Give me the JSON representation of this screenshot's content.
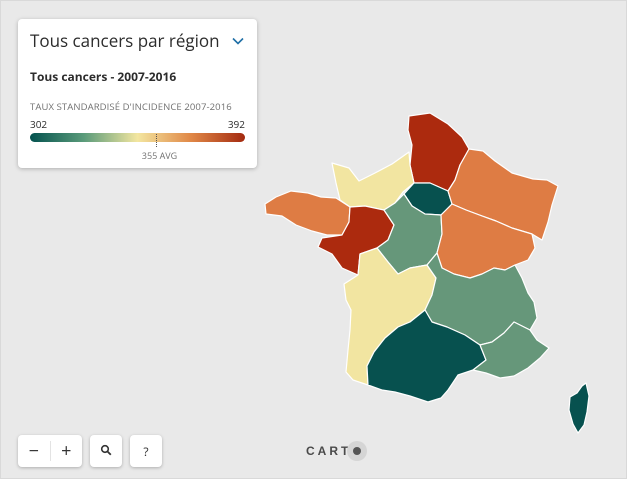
{
  "legend": {
    "title": "Tous cancers par région",
    "layer_title": "Tous cancers - 2007-2016",
    "subtitle": "TAUX STANDARDISÉ D'INCIDENCE 2007-2016",
    "min": "302",
    "max": "392",
    "avg": "355 AVG"
  },
  "colors": {
    "ramp": [
      "#04524f",
      "#5a9b7a",
      "#f3e6a0",
      "#e08746",
      "#a32a10"
    ],
    "background": "#e9e9e9"
  },
  "regions": [
    {
      "id": "hauts-de-france",
      "class": "darkred",
      "color": "#ac2a0e"
    },
    {
      "id": "normandie",
      "class": "yellow",
      "color": "#f2e5a1"
    },
    {
      "id": "ile-de-france",
      "class": "teal",
      "color": "#07514f"
    },
    {
      "id": "grand-est",
      "class": "orange",
      "color": "#de7c44"
    },
    {
      "id": "bretagne",
      "class": "orange",
      "color": "#de7c44"
    },
    {
      "id": "pays-de-la-loire",
      "class": "darkred",
      "color": "#ac2a0e"
    },
    {
      "id": "centre-val-de-loire",
      "class": "green",
      "color": "#66977a"
    },
    {
      "id": "bourgogne-franche-comte",
      "class": "orange",
      "color": "#de7c44"
    },
    {
      "id": "nouvelle-aquitaine",
      "class": "yellow",
      "color": "#f2e5a1"
    },
    {
      "id": "auvergne-rhone-alpes",
      "class": "green",
      "color": "#66977a"
    },
    {
      "id": "occitanie",
      "class": "teal",
      "color": "#07514f"
    },
    {
      "id": "provence-alpes-cote-azur",
      "class": "green",
      "color": "#66977a"
    },
    {
      "id": "corse",
      "class": "teal",
      "color": "#07514f"
    }
  ],
  "controls": {
    "zoom_out": "−",
    "zoom_in": "+",
    "search_icon": "search-icon",
    "help": "?"
  },
  "attribution": {
    "logo_text": "CART"
  }
}
